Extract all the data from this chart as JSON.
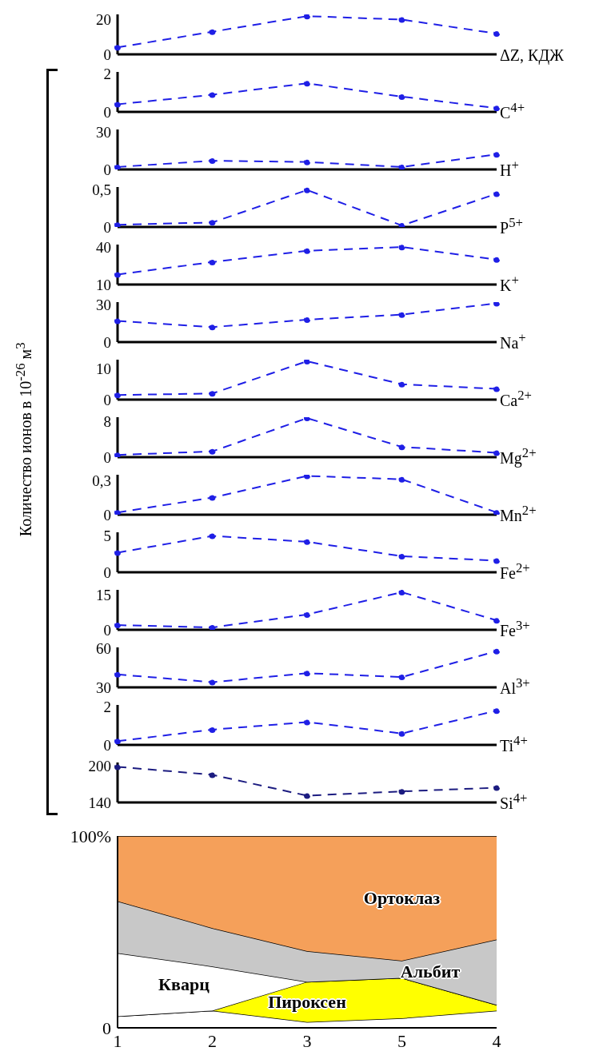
{
  "chart_data": [
    {
      "type": "line",
      "categories": [
        "1",
        "2",
        "3",
        "5",
        "4"
      ],
      "tick_labels": "y",
      "ylim": [
        0,
        23
      ],
      "yticks": [
        0,
        20
      ],
      "marker": "circle",
      "line_style": "dashed",
      "series": [
        {
          "name": "ΔZ, КДЖ",
          "color": "#1f1fe6",
          "values": [
            4,
            13,
            22,
            20,
            12
          ]
        }
      ]
    },
    {
      "type": "line",
      "categories": [
        "1",
        "2",
        "3",
        "5",
        "4"
      ],
      "tick_labels": "y",
      "ylim": [
        0,
        2.1
      ],
      "yticks": [
        0,
        2
      ],
      "marker": "circle",
      "line_style": "dashed",
      "series": [
        {
          "name": "C$^{4+}$",
          "color": "#1f1fe6",
          "values": [
            0.4,
            0.9,
            1.5,
            0.8,
            0.2
          ]
        }
      ]
    },
    {
      "type": "line",
      "categories": [
        "1",
        "2",
        "3",
        "5",
        "4"
      ],
      "tick_labels": "y",
      "ylim": [
        0,
        32
      ],
      "yticks": [
        0,
        30
      ],
      "marker": "circle",
      "line_style": "dashed",
      "series": [
        {
          "name": "H$^{+}$",
          "color": "#1f1fe6",
          "values": [
            2,
            7,
            6,
            2,
            12
          ]
        }
      ]
    },
    {
      "type": "line",
      "categories": [
        "1",
        "2",
        "3",
        "5",
        "4"
      ],
      "tick_labels": "y",
      "ylim": [
        0,
        0.53
      ],
      "yticks": [
        0,
        {
          "value": 0.5,
          "label": "0,5"
        }
      ],
      "marker": "circle",
      "line_style": "dashed",
      "series": [
        {
          "name": "P$^{5+}$",
          "color": "#1f1fe6",
          "values": [
            0.03,
            0.06,
            0.49,
            0.02,
            0.44
          ]
        }
      ]
    },
    {
      "type": "line",
      "categories": [
        "1",
        "2",
        "3",
        "5",
        "4"
      ],
      "tick_labels": "y",
      "ylim": [
        10,
        42
      ],
      "yticks": [
        10,
        40
      ],
      "marker": "circle",
      "line_style": "dashed",
      "series": [
        {
          "name": "K$^{+}$",
          "color": "#1f1fe6",
          "values": [
            18,
            28,
            37,
            40,
            30
          ]
        }
      ]
    },
    {
      "type": "line",
      "categories": [
        "1",
        "2",
        "3",
        "5",
        "4"
      ],
      "tick_labels": "y",
      "ylim": [
        0,
        32
      ],
      "yticks": [
        0,
        30
      ],
      "marker": "circle",
      "line_style": "dashed",
      "series": [
        {
          "name": "Na$^{+}$",
          "color": "#1f1fe6",
          "values": [
            17,
            12,
            18,
            22,
            31
          ]
        }
      ]
    },
    {
      "type": "line",
      "categories": [
        "1",
        "2",
        "3",
        "5",
        "4"
      ],
      "tick_labels": "y",
      "ylim": [
        0,
        13
      ],
      "yticks": [
        0,
        10
      ],
      "marker": "circle",
      "line_style": "dashed",
      "series": [
        {
          "name": "Ca$^{2+}$",
          "color": "#1f1fe6",
          "values": [
            1.5,
            2,
            12.5,
            5,
            3.5
          ]
        }
      ]
    },
    {
      "type": "line",
      "categories": [
        "1",
        "2",
        "3",
        "5",
        "4"
      ],
      "tick_labels": "y",
      "ylabel": "Количество ионов в 10$^{-26}$ м$^{3}$",
      "ylim": [
        0,
        9
      ],
      "yticks": [
        0,
        8
      ],
      "marker": "circle",
      "line_style": "dashed",
      "series": [
        {
          "name": "Mg$^{2+}$",
          "color": "#1f1fe6",
          "values": [
            0.5,
            1.3,
            8.8,
            2.3,
            1
          ]
        }
      ]
    },
    {
      "type": "line",
      "categories": [
        "1",
        "2",
        "3",
        "5",
        "4"
      ],
      "tick_labels": "y",
      "ylim": [
        0,
        0.35
      ],
      "yticks": [
        0,
        {
          "value": 0.3,
          "label": "0,3"
        }
      ],
      "marker": "circle",
      "line_style": "dashed",
      "series": [
        {
          "name": "Mn$^{2+}$",
          "color": "#1f1fe6",
          "values": [
            0.02,
            0.15,
            0.34,
            0.31,
            0.02
          ]
        }
      ]
    },
    {
      "type": "line",
      "categories": [
        "1",
        "2",
        "3",
        "5",
        "4"
      ],
      "tick_labels": "y",
      "ylim": [
        0,
        5.5
      ],
      "yticks": [
        0,
        5
      ],
      "marker": "circle",
      "line_style": "dashed",
      "series": [
        {
          "name": "Fe$^{2+}$",
          "color": "#1f1fe6",
          "values": [
            2.7,
            5,
            4.2,
            2.2,
            1.6
          ]
        }
      ]
    },
    {
      "type": "line",
      "categories": [
        "1",
        "2",
        "3",
        "5",
        "4"
      ],
      "tick_labels": "y",
      "ylim": [
        0,
        17
      ],
      "yticks": [
        0,
        15
      ],
      "marker": "circle",
      "line_style": "dashed",
      "series": [
        {
          "name": "Fe$^{3+}$",
          "color": "#1f1fe6",
          "values": [
            2,
            1,
            6.5,
            16,
            4
          ]
        }
      ]
    },
    {
      "type": "line",
      "categories": [
        "1",
        "2",
        "3",
        "5",
        "4"
      ],
      "tick_labels": "y",
      "ylim": [
        30,
        61
      ],
      "yticks": [
        30,
        60
      ],
      "marker": "circle",
      "line_style": "dashed",
      "series": [
        {
          "name": "Al$^{3+}$",
          "color": "#1f1fe6",
          "values": [
            40,
            34,
            41,
            38,
            58
          ]
        }
      ]
    },
    {
      "type": "line",
      "categories": [
        "1",
        "2",
        "3",
        "5",
        "4"
      ],
      "tick_labels": "y",
      "ylim": [
        0,
        2.1
      ],
      "yticks": [
        0,
        2
      ],
      "marker": "circle",
      "line_style": "dashed",
      "series": [
        {
          "name": "Ti$^{4+}$",
          "color": "#1f1fe6",
          "values": [
            0.2,
            0.8,
            1.2,
            0.6,
            1.8
          ]
        }
      ]
    },
    {
      "type": "line",
      "categories": [
        "1",
        "2",
        "3",
        "5",
        "4"
      ],
      "tick_labels": "y",
      "ylim": [
        140,
        205
      ],
      "yticks": [
        140,
        200
      ],
      "marker": "circle",
      "line_style": "dashed",
      "series": [
        {
          "name": "Si$^{4+}$",
          "color": "#1c1c80",
          "values": [
            198,
            185,
            151,
            158,
            164
          ]
        }
      ]
    },
    {
      "type": "area",
      "stacked": true,
      "categories": [
        "1",
        "2",
        "3",
        "5",
        "4"
      ],
      "ylim": [
        0,
        100
      ],
      "yticks": [
        0,
        {
          "value": 100,
          "label": "100%"
        }
      ],
      "series": [
        {
          "color": "#ffffff",
          "values": [
            6,
            9,
            3,
            5,
            9
          ]
        },
        {
          "name": "Пироксен",
          "color": "#ffff00",
          "values": [
            0,
            0,
            21,
            21,
            3
          ]
        },
        {
          "name": "Кварц",
          "color": "#ffffff",
          "values": [
            33,
            23,
            0,
            0,
            0
          ]
        },
        {
          "name": "Альбит",
          "color": "#c8c8c8",
          "values": [
            27,
            20,
            16,
            9,
            34
          ]
        },
        {
          "name": "Ортоклаз",
          "color": "#f5a05a",
          "values": [
            34,
            48,
            60,
            65,
            54
          ]
        }
      ]
    }
  ]
}
